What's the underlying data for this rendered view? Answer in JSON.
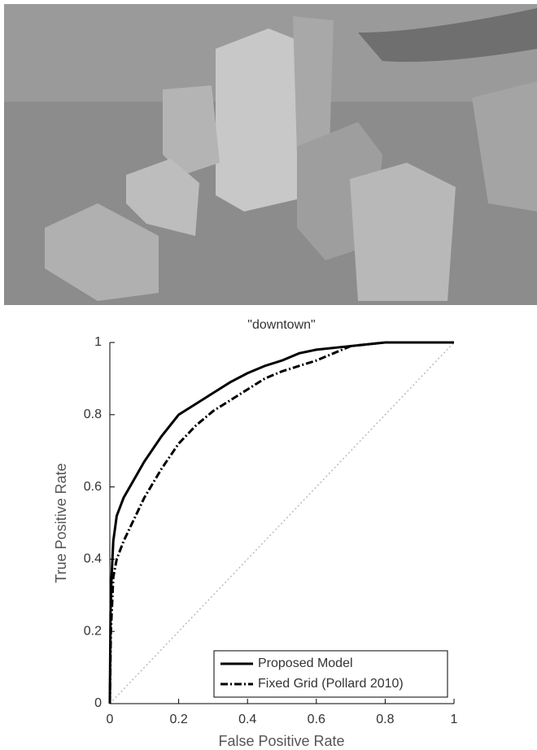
{
  "chart_data": {
    "type": "line",
    "title": "\"downtown\"",
    "x_label": "False Positive Rate",
    "y_label": "True Positive Rate",
    "xlim": [
      0,
      1
    ],
    "ylim": [
      0,
      1
    ],
    "xticks": [
      0,
      0.2,
      0.4,
      0.6,
      0.8,
      1
    ],
    "yticks": [
      0,
      0.2,
      0.4,
      0.6,
      0.8,
      1
    ],
    "legend": "lower right",
    "series": [
      {
        "name": "Proposed Model",
        "color": "#000000",
        "dash": "solid",
        "x": [
          0,
          0.002,
          0.005,
          0.01,
          0.02,
          0.04,
          0.07,
          0.1,
          0.15,
          0.2,
          0.25,
          0.3,
          0.35,
          0.4,
          0.45,
          0.5,
          0.55,
          0.6,
          0.7,
          0.8,
          1
        ],
        "values": [
          0,
          0.25,
          0.35,
          0.45,
          0.52,
          0.57,
          0.62,
          0.67,
          0.74,
          0.8,
          0.83,
          0.86,
          0.89,
          0.915,
          0.935,
          0.95,
          0.97,
          0.98,
          0.99,
          1,
          1
        ]
      },
      {
        "name": "Fixed Grid (Pollard 2010)",
        "color": "#000000",
        "dash": "dashdot",
        "x": [
          0,
          0.003,
          0.01,
          0.02,
          0.04,
          0.07,
          0.1,
          0.15,
          0.2,
          0.25,
          0.3,
          0.35,
          0.4,
          0.45,
          0.5,
          0.55,
          0.6,
          0.65,
          0.7,
          0.75,
          0.8,
          1
        ],
        "values": [
          0,
          0.2,
          0.35,
          0.4,
          0.45,
          0.51,
          0.57,
          0.65,
          0.72,
          0.77,
          0.81,
          0.84,
          0.87,
          0.9,
          0.92,
          0.935,
          0.95,
          0.97,
          0.99,
          0.995,
          1,
          1
        ]
      }
    ]
  }
}
